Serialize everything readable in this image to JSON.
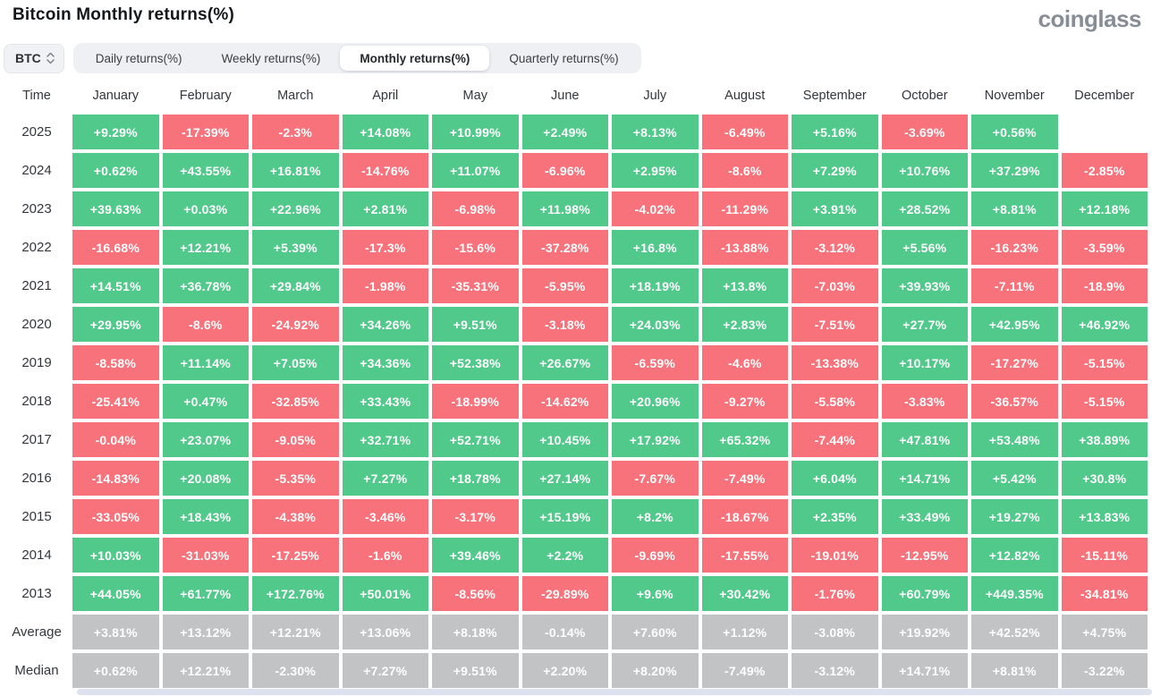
{
  "header": {
    "title": "Bitcoin Monthly returns(%)",
    "logo": "coinglass"
  },
  "controls": {
    "coin_selector": {
      "value": "BTC"
    },
    "tabs": [
      {
        "label": "Daily returns(%)",
        "active": false
      },
      {
        "label": "Weekly returns(%)",
        "active": false
      },
      {
        "label": "Monthly returns(%)",
        "active": true
      },
      {
        "label": "Quarterly returns(%)",
        "active": false
      }
    ]
  },
  "colors": {
    "positive": "#51c98b",
    "negative": "#f7727b",
    "aggregate": "#c2c3c5",
    "active_tab_bg": "#ffffff",
    "tabbar_bg": "#eef0f3",
    "logo_gray": "#878d96"
  },
  "chart_data": {
    "type": "heatmap",
    "title": "Bitcoin Monthly returns(%)",
    "columns": [
      "Time",
      "January",
      "February",
      "March",
      "April",
      "May",
      "June",
      "July",
      "August",
      "September",
      "October",
      "November",
      "December"
    ],
    "rows": [
      {
        "label": "2025",
        "aggregate": false,
        "values": [
          "+9.29%",
          "-17.39%",
          "-2.3%",
          "+14.08%",
          "+10.99%",
          "+2.49%",
          "+8.13%",
          "-6.49%",
          "+5.16%",
          "-3.69%",
          "+0.56%",
          ""
        ]
      },
      {
        "label": "2024",
        "aggregate": false,
        "values": [
          "+0.62%",
          "+43.55%",
          "+16.81%",
          "-14.76%",
          "+11.07%",
          "-6.96%",
          "+2.95%",
          "-8.6%",
          "+7.29%",
          "+10.76%",
          "+37.29%",
          "-2.85%"
        ]
      },
      {
        "label": "2023",
        "aggregate": false,
        "values": [
          "+39.63%",
          "+0.03%",
          "+22.96%",
          "+2.81%",
          "-6.98%",
          "+11.98%",
          "-4.02%",
          "-11.29%",
          "+3.91%",
          "+28.52%",
          "+8.81%",
          "+12.18%"
        ]
      },
      {
        "label": "2022",
        "aggregate": false,
        "values": [
          "-16.68%",
          "+12.21%",
          "+5.39%",
          "-17.3%",
          "-15.6%",
          "-37.28%",
          "+16.8%",
          "-13.88%",
          "-3.12%",
          "+5.56%",
          "-16.23%",
          "-3.59%"
        ]
      },
      {
        "label": "2021",
        "aggregate": false,
        "values": [
          "+14.51%",
          "+36.78%",
          "+29.84%",
          "-1.98%",
          "-35.31%",
          "-5.95%",
          "+18.19%",
          "+13.8%",
          "-7.03%",
          "+39.93%",
          "-7.11%",
          "-18.9%"
        ]
      },
      {
        "label": "2020",
        "aggregate": false,
        "values": [
          "+29.95%",
          "-8.6%",
          "-24.92%",
          "+34.26%",
          "+9.51%",
          "-3.18%",
          "+24.03%",
          "+2.83%",
          "-7.51%",
          "+27.7%",
          "+42.95%",
          "+46.92%"
        ]
      },
      {
        "label": "2019",
        "aggregate": false,
        "values": [
          "-8.58%",
          "+11.14%",
          "+7.05%",
          "+34.36%",
          "+52.38%",
          "+26.67%",
          "-6.59%",
          "-4.6%",
          "-13.38%",
          "+10.17%",
          "-17.27%",
          "-5.15%"
        ]
      },
      {
        "label": "2018",
        "aggregate": false,
        "values": [
          "-25.41%",
          "+0.47%",
          "-32.85%",
          "+33.43%",
          "-18.99%",
          "-14.62%",
          "+20.96%",
          "-9.27%",
          "-5.58%",
          "-3.83%",
          "-36.57%",
          "-5.15%"
        ]
      },
      {
        "label": "2017",
        "aggregate": false,
        "values": [
          "-0.04%",
          "+23.07%",
          "-9.05%",
          "+32.71%",
          "+52.71%",
          "+10.45%",
          "+17.92%",
          "+65.32%",
          "-7.44%",
          "+47.81%",
          "+53.48%",
          "+38.89%"
        ]
      },
      {
        "label": "2016",
        "aggregate": false,
        "values": [
          "-14.83%",
          "+20.08%",
          "-5.35%",
          "+7.27%",
          "+18.78%",
          "+27.14%",
          "-7.67%",
          "-7.49%",
          "+6.04%",
          "+14.71%",
          "+5.42%",
          "+30.8%"
        ]
      },
      {
        "label": "2015",
        "aggregate": false,
        "values": [
          "-33.05%",
          "+18.43%",
          "-4.38%",
          "-3.46%",
          "-3.17%",
          "+15.19%",
          "+8.2%",
          "-18.67%",
          "+2.35%",
          "+33.49%",
          "+19.27%",
          "+13.83%"
        ]
      },
      {
        "label": "2014",
        "aggregate": false,
        "values": [
          "+10.03%",
          "-31.03%",
          "-17.25%",
          "-1.6%",
          "+39.46%",
          "+2.2%",
          "-9.69%",
          "-17.55%",
          "-19.01%",
          "-12.95%",
          "+12.82%",
          "-15.11%"
        ]
      },
      {
        "label": "2013",
        "aggregate": false,
        "values": [
          "+44.05%",
          "+61.77%",
          "+172.76%",
          "+50.01%",
          "-8.56%",
          "-29.89%",
          "+9.6%",
          "+30.42%",
          "-1.76%",
          "+60.79%",
          "+449.35%",
          "-34.81%"
        ]
      },
      {
        "label": "Average",
        "aggregate": true,
        "values": [
          "+3.81%",
          "+13.12%",
          "+12.21%",
          "+13.06%",
          "+8.18%",
          "-0.14%",
          "+7.60%",
          "+1.12%",
          "-3.08%",
          "+19.92%",
          "+42.52%",
          "+4.75%"
        ]
      },
      {
        "label": "Median",
        "aggregate": true,
        "values": [
          "+0.62%",
          "+12.21%",
          "-2.30%",
          "+7.27%",
          "+9.51%",
          "+2.20%",
          "+8.20%",
          "-7.49%",
          "-3.12%",
          "+14.71%",
          "+8.81%",
          "-3.22%"
        ]
      }
    ]
  }
}
